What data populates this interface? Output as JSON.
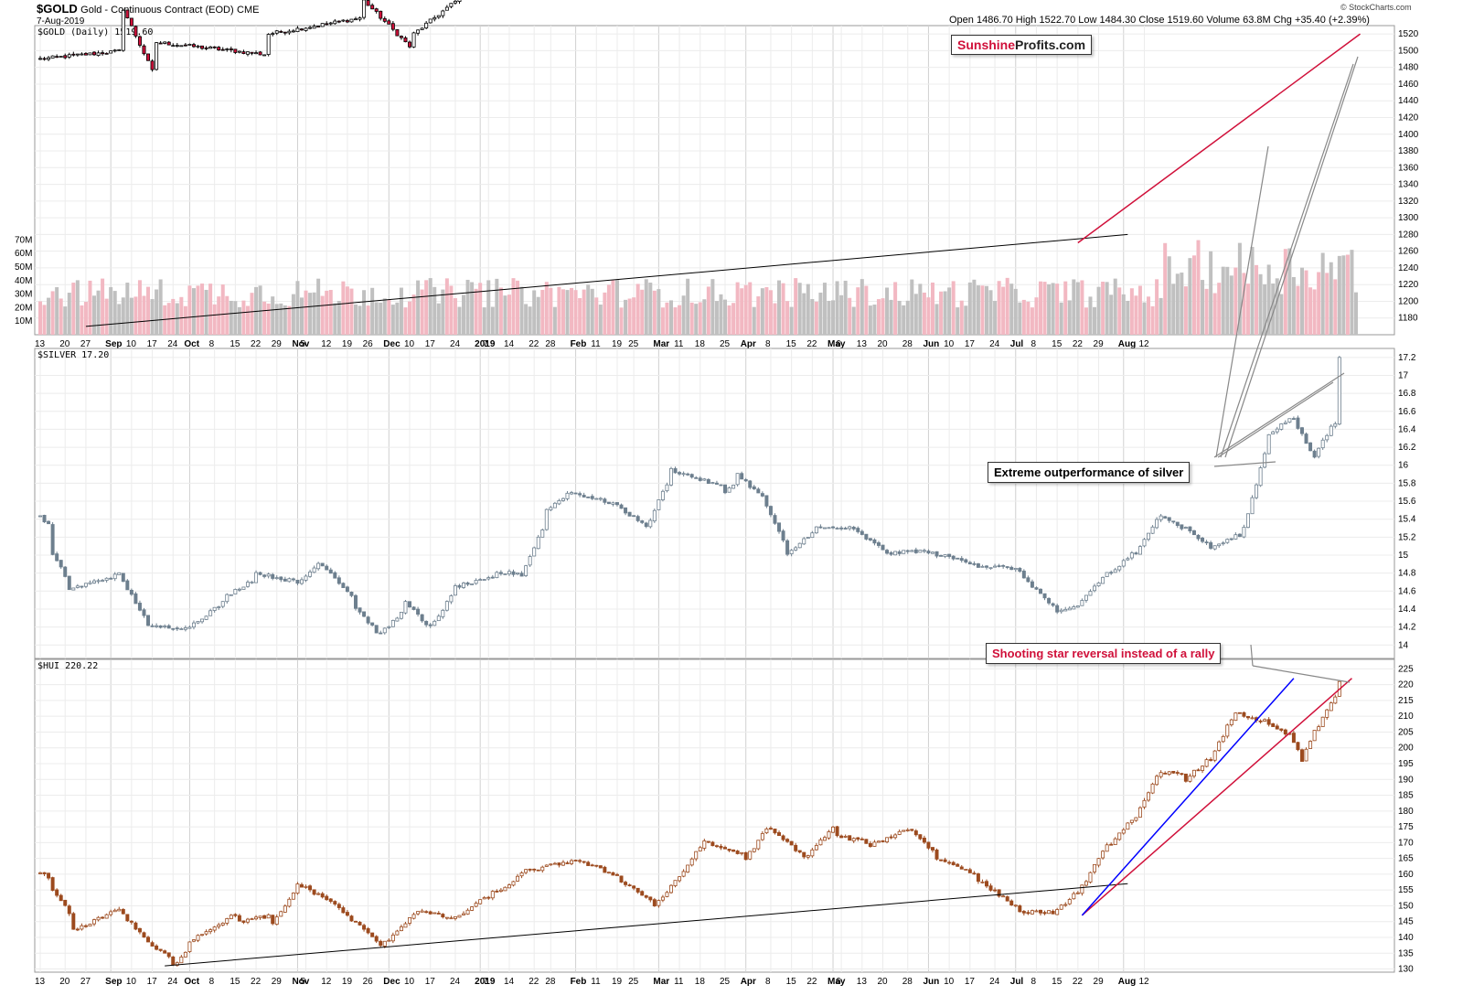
{
  "header": {
    "symbol": "$GOLD",
    "name": "Gold - Continuous Contract (EOD)",
    "exchange": "CME",
    "date": "7-Aug-2019",
    "ohlc": "Open 1486.70  High 1522.70  Low 1484.30  Close 1519.60  Volume 63.8M  Chg +35.40 (+2.39%)",
    "credit": "© StockCharts.com"
  },
  "logo": {
    "part1": "Sunshine",
    "part2": "Profits.com",
    "color1": "#d0103a"
  },
  "annotations": {
    "silver": "Extreme outperformance of silver",
    "hui": "Shooting star reversal instead of a rally"
  },
  "chart_data": [
    {
      "type": "candlestick",
      "title": "$GOLD (Daily) 1519.60",
      "ylim": [
        1160,
        1530
      ],
      "yticks": [
        1180,
        1200,
        1220,
        1240,
        1260,
        1280,
        1300,
        1320,
        1340,
        1360,
        1380,
        1400,
        1420,
        1440,
        1460,
        1480,
        1500,
        1520
      ],
      "volume_ticks": [
        "10M",
        "20M",
        "30M",
        "40M",
        "50M",
        "60M",
        "70M"
      ],
      "x_tick_labels": [
        "13",
        "20",
        "27",
        "Sep",
        "10",
        "17",
        "24",
        "Oct",
        "8",
        "15",
        "22",
        "29",
        "Nov",
        "5",
        "12",
        "19",
        "26",
        "Dec",
        "10",
        "17",
        "24",
        "2019",
        "7",
        "14",
        "22",
        "28",
        "Feb",
        "11",
        "19",
        "25",
        "Mar",
        "11",
        "18",
        "25",
        "Apr",
        "8",
        "15",
        "22",
        "May",
        "6",
        "13",
        "20",
        "28",
        "Jun",
        "10",
        "17",
        "24",
        "Jul",
        "8",
        "15",
        "22",
        "29",
        "Aug",
        "12"
      ],
      "anchors": [
        [
          0,
          1460,
          1490
        ],
        [
          20,
          1500,
          1550
        ],
        [
          28,
          1465,
          1510
        ],
        [
          55,
          1495,
          1520
        ],
        [
          78,
          1540,
          1560
        ],
        [
          90,
          1500,
          1520
        ],
        [
          108,
          1590,
          1620
        ],
        [
          128,
          1620,
          1640
        ],
        [
          140,
          1605,
          1620
        ],
        [
          146,
          1655,
          1680
        ],
        [
          153,
          1725,
          1750
        ],
        [
          165,
          1700,
          1720
        ],
        [
          175,
          1740,
          1760
        ],
        [
          185,
          1750,
          1770
        ],
        [
          197,
          1795,
          1790
        ],
        [
          208,
          1810,
          1830
        ],
        [
          216,
          1720,
          1740
        ],
        [
          226,
          1680,
          1700
        ],
        [
          240,
          1700,
          1720
        ],
        [
          250,
          1710,
          1730
        ],
        [
          262,
          1750,
          1770
        ],
        [
          266,
          1720,
          1740
        ],
        [
          270,
          1735,
          1750
        ],
        [
          276,
          1830,
          1850
        ],
        [
          286,
          1890,
          1880
        ],
        [
          296,
          1820,
          1815
        ],
        [
          300,
          1830,
          1840
        ]
      ]
    },
    {
      "type": "candlestick",
      "title": "$SILVER 17.20",
      "ylim": [
        13.85,
        17.3
      ],
      "yticks": [
        14.0,
        14.2,
        14.4,
        14.6,
        14.8,
        15.0,
        15.2,
        15.4,
        15.6,
        15.8,
        16.0,
        16.2,
        16.4,
        16.6,
        16.8,
        17.0,
        17.2
      ],
      "anchors": [
        [
          0,
          15.45,
          15.42
        ],
        [
          3,
          15.3,
          15.0
        ],
        [
          7,
          14.7,
          14.62
        ],
        [
          20,
          14.8,
          14.7
        ],
        [
          26,
          14.25,
          14.2
        ],
        [
          35,
          14.2,
          14.18
        ],
        [
          45,
          14.5,
          14.55
        ],
        [
          52,
          14.75,
          14.8
        ],
        [
          62,
          14.7,
          14.68
        ],
        [
          68,
          14.95,
          14.9
        ],
        [
          76,
          14.5,
          14.42
        ],
        [
          82,
          14.1,
          14.12
        ],
        [
          88,
          14.4,
          14.5
        ],
        [
          94,
          14.15,
          14.2
        ],
        [
          100,
          14.6,
          14.65
        ],
        [
          110,
          14.75,
          14.8
        ],
        [
          116,
          14.8,
          14.78
        ],
        [
          122,
          15.4,
          15.5
        ],
        [
          128,
          15.72,
          15.7
        ],
        [
          140,
          15.55,
          15.5
        ],
        [
          146,
          15.35,
          15.3
        ],
        [
          152,
          15.9,
          15.95
        ],
        [
          165,
          15.75,
          15.7
        ],
        [
          168,
          15.85,
          15.9
        ],
        [
          175,
          15.6,
          15.55
        ],
        [
          180,
          15.05,
          15.0
        ],
        [
          188,
          15.35,
          15.3
        ],
        [
          196,
          15.3,
          15.28
        ],
        [
          205,
          15.0,
          15.02
        ],
        [
          212,
          15.05,
          15.05
        ],
        [
          226,
          14.9,
          14.88
        ],
        [
          236,
          14.85,
          14.8
        ],
        [
          245,
          14.38,
          14.35
        ],
        [
          251,
          14.45,
          14.5
        ],
        [
          258,
          14.85,
          14.8
        ],
        [
          264,
          15.05,
          15.0
        ],
        [
          270,
          15.5,
          15.45
        ],
        [
          276,
          15.28,
          15.3
        ],
        [
          283,
          15.05,
          15.1
        ],
        [
          290,
          15.25,
          15.3
        ],
        [
          296,
          16.3,
          16.35
        ],
        [
          302,
          16.55,
          16.5
        ],
        [
          308,
          16.0,
          16.2
        ],
        [
          311,
          16.4,
          16.45
        ],
        [
          313,
          16.5,
          17.2
        ]
      ]
    },
    {
      "type": "candlestick",
      "title": "$HUI 220.22",
      "ylim": [
        129,
        228
      ],
      "yticks": [
        130,
        135,
        140,
        145,
        150,
        155,
        160,
        165,
        170,
        175,
        180,
        185,
        190,
        195,
        200,
        205,
        210,
        215,
        220,
        225
      ],
      "anchors": [
        [
          0,
          161,
          161
        ],
        [
          3,
          157,
          155
        ],
        [
          8,
          146,
          142
        ],
        [
          20,
          150,
          147
        ],
        [
          26,
          139,
          138
        ],
        [
          32,
          133,
          131
        ],
        [
          36,
          137,
          139
        ],
        [
          48,
          148,
          145
        ],
        [
          56,
          147,
          144
        ],
        [
          62,
          156,
          157
        ],
        [
          72,
          150,
          149
        ],
        [
          82,
          138,
          137
        ],
        [
          92,
          150,
          148
        ],
        [
          100,
          146,
          146
        ],
        [
          110,
          155,
          154
        ],
        [
          118,
          162,
          161
        ],
        [
          130,
          165,
          164
        ],
        [
          140,
          159,
          158
        ],
        [
          148,
          151,
          150
        ],
        [
          154,
          159,
          159
        ],
        [
          160,
          171,
          170
        ],
        [
          170,
          166,
          165
        ],
        [
          176,
          176,
          174
        ],
        [
          184,
          166,
          165
        ],
        [
          192,
          176,
          172
        ],
        [
          200,
          170,
          169
        ],
        [
          210,
          175,
          174
        ],
        [
          216,
          166,
          165
        ],
        [
          226,
          160,
          158
        ],
        [
          236,
          149,
          148
        ],
        [
          244,
          148,
          147
        ],
        [
          250,
          155,
          154
        ],
        [
          258,
          171,
          170
        ],
        [
          264,
          179,
          178
        ],
        [
          270,
          193,
          192
        ],
        [
          276,
          192,
          190
        ],
        [
          282,
          197,
          196
        ],
        [
          288,
          212,
          211
        ],
        [
          296,
          208,
          207
        ],
        [
          301,
          204,
          204
        ],
        [
          304,
          197,
          196
        ],
        [
          308,
          208,
          207
        ],
        [
          313,
          219,
          221
        ]
      ]
    }
  ]
}
